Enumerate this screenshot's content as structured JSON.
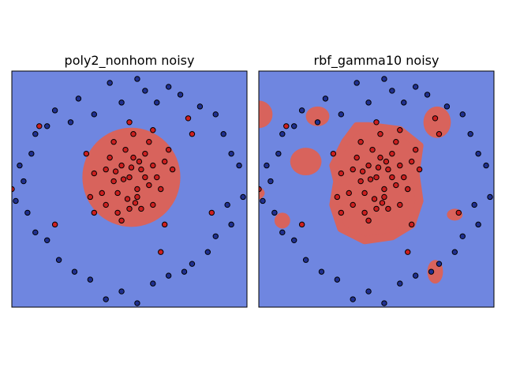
{
  "chart_data": [
    {
      "type": "scatter",
      "title": "poly2_nonhom noisy",
      "xlim": [
        -3,
        3
      ],
      "ylim": [
        -3,
        3
      ],
      "axis_ticks": "hidden",
      "background_region": {
        "label": "class 0",
        "color": "#6f86e0"
      },
      "decision_regions": [
        {
          "label": "class 1",
          "shape": "ellipse",
          "cx": 0.05,
          "cy": 0.3,
          "rx": 1.25,
          "ry": 1.26,
          "color": "#d8635c"
        }
      ],
      "series": [
        {
          "class": 1,
          "color": "#cc1f1f",
          "points": [
            [
              0,
              0.3
            ],
            [
              0.3,
              0.5
            ],
            [
              -0.2,
              0.6
            ],
            [
              0.5,
              0.1
            ],
            [
              -0.4,
              0.2
            ],
            [
              0.1,
              0.8
            ],
            [
              0.6,
              0.6
            ],
            [
              -0.6,
              0.5
            ],
            [
              0.2,
              -0.2
            ],
            [
              -0.3,
              -0.1
            ],
            [
              0.7,
              0.3
            ],
            [
              -0.1,
              1.0
            ],
            [
              0.4,
              0.9
            ],
            [
              -0.5,
              0.8
            ],
            [
              0.8,
              0.0
            ],
            [
              -0.7,
              -0.1
            ],
            [
              0.0,
              -0.5
            ],
            [
              0.3,
              -0.5
            ],
            [
              -0.3,
              -0.6
            ],
            [
              0.9,
              0.7
            ],
            [
              -0.9,
              0.4
            ],
            [
              0.5,
              1.2
            ],
            [
              -0.4,
              1.2
            ],
            [
              0.1,
              1.4
            ],
            [
              1.0,
              1.0
            ],
            [
              -1.0,
              -0.2
            ],
            [
              0.6,
              -0.4
            ],
            [
              -0.6,
              -0.4
            ],
            [
              0.2,
              0.0
            ],
            [
              0.4,
              0.3
            ],
            [
              -0.15,
              0.25
            ],
            [
              0.05,
              0.55
            ],
            [
              0.25,
              0.7
            ],
            [
              -0.35,
              0.45
            ],
            [
              0.15,
              -0.35
            ],
            [
              -0.05,
              -0.25
            ],
            [
              1.1,
              0.5
            ],
            [
              -1.1,
              0.9
            ],
            [
              0.6,
              1.5
            ],
            [
              -0.2,
              -0.8
            ],
            [
              -3.0,
              0.0
            ],
            [
              -1.9,
              -0.9
            ],
            [
              2.1,
              -0.6
            ],
            [
              0.8,
              -1.6
            ],
            [
              1.5,
              1.8
            ],
            [
              -2.3,
              1.6
            ],
            [
              1.6,
              1.4
            ],
            [
              -0.9,
              -0.6
            ],
            [
              0.0,
              1.7
            ],
            [
              0.9,
              -0.9
            ]
          ]
        },
        {
          "class": 0,
          "color": "#1f2f8f",
          "points": [
            [
              -1.3,
              2.3
            ],
            [
              -0.5,
              2.7
            ],
            [
              0.2,
              2.8
            ],
            [
              1.0,
              2.6
            ],
            [
              1.8,
              2.1
            ],
            [
              2.4,
              1.4
            ],
            [
              2.8,
              0.6
            ],
            [
              2.9,
              -0.2
            ],
            [
              2.6,
              -0.9
            ],
            [
              2.0,
              -1.6
            ],
            [
              1.4,
              -2.1
            ],
            [
              0.6,
              -2.4
            ],
            [
              -0.2,
              -2.6
            ],
            [
              -1.0,
              -2.3
            ],
            [
              -1.8,
              -1.8
            ],
            [
              -2.4,
              -1.1
            ],
            [
              -2.9,
              -0.3
            ],
            [
              -2.8,
              0.6
            ],
            [
              -2.4,
              1.4
            ],
            [
              -1.9,
              2.0
            ],
            [
              -0.9,
              1.9
            ],
            [
              -1.5,
              1.7
            ],
            [
              0.7,
              2.2
            ],
            [
              1.3,
              2.4
            ],
            [
              2.2,
              1.9
            ],
            [
              2.6,
              0.9
            ],
            [
              2.5,
              -0.4
            ],
            [
              2.2,
              -1.2
            ],
            [
              1.6,
              -1.9
            ],
            [
              1.0,
              -2.2
            ],
            [
              0.2,
              -2.9
            ],
            [
              -0.6,
              -2.8
            ],
            [
              -1.4,
              -2.1
            ],
            [
              -2.1,
              -1.3
            ],
            [
              -2.6,
              -0.6
            ],
            [
              -2.7,
              0.2
            ],
            [
              -2.5,
              0.9
            ],
            [
              -2.1,
              1.6
            ],
            [
              -0.2,
              2.2
            ],
            [
              0.4,
              2.5
            ]
          ]
        }
      ]
    },
    {
      "type": "scatter",
      "title": "rbf_gamma10 noisy",
      "xlim": [
        -3,
        3
      ],
      "ylim": [
        -3,
        3
      ],
      "axis_ticks": "hidden",
      "background_region": {
        "label": "class 0",
        "color": "#6f86e0"
      },
      "decision_regions": [
        {
          "label": "class 1",
          "shape": "blob",
          "color": "#d8635c",
          "polygon": [
            [
              -0.2,
              1.6
            ],
            [
              0.6,
              1.5
            ],
            [
              1.1,
              1.1
            ],
            [
              1.0,
              0.4
            ],
            [
              1.1,
              -0.3
            ],
            [
              0.9,
              -0.9
            ],
            [
              0.4,
              -1.2
            ],
            [
              -0.3,
              -1.3
            ],
            [
              -0.9,
              -1.0
            ],
            [
              -1.1,
              -0.4
            ],
            [
              -1.0,
              0.2
            ],
            [
              -1.1,
              0.6
            ],
            [
              -0.8,
              1.2
            ],
            [
              -0.5,
              1.6
            ]
          ]
        },
        {
          "label": "class 1",
          "shape": "ellipse",
          "cx": -3.0,
          "cy": 1.9,
          "rx": 0.35,
          "ry": 0.35,
          "color": "#d8635c"
        },
        {
          "label": "class 1",
          "shape": "ellipse",
          "cx": -1.8,
          "cy": 0.7,
          "rx": 0.4,
          "ry": 0.35,
          "color": "#d8635c"
        },
        {
          "label": "class 1",
          "shape": "ellipse",
          "cx": -3.2,
          "cy": -0.1,
          "rx": 0.35,
          "ry": 0.2,
          "color": "#d8635c"
        },
        {
          "label": "class 1",
          "shape": "ellipse",
          "cx": -2.4,
          "cy": -0.8,
          "rx": 0.2,
          "ry": 0.2,
          "color": "#d8635c"
        },
        {
          "label": "class 1",
          "shape": "ellipse",
          "cx": -1.5,
          "cy": 1.85,
          "rx": 0.3,
          "ry": 0.25,
          "color": "#d8635c"
        },
        {
          "label": "class 1",
          "shape": "ellipse",
          "cx": 1.55,
          "cy": 1.7,
          "rx": 0.35,
          "ry": 0.4,
          "color": "#d8635c"
        },
        {
          "label": "class 1",
          "shape": "ellipse",
          "cx": 2.0,
          "cy": -0.65,
          "rx": 0.2,
          "ry": 0.15,
          "color": "#d8635c"
        },
        {
          "label": "class 1",
          "shape": "ellipse",
          "cx": 1.5,
          "cy": -2.1,
          "rx": 0.2,
          "ry": 0.3,
          "color": "#d8635c"
        }
      ],
      "series": [
        {
          "class": 1,
          "color": "#cc1f1f",
          "points": [
            [
              0,
              0.3
            ],
            [
              0.3,
              0.5
            ],
            [
              -0.2,
              0.6
            ],
            [
              0.5,
              0.1
            ],
            [
              -0.4,
              0.2
            ],
            [
              0.1,
              0.8
            ],
            [
              0.6,
              0.6
            ],
            [
              -0.6,
              0.5
            ],
            [
              0.2,
              -0.2
            ],
            [
              -0.3,
              -0.1
            ],
            [
              0.7,
              0.3
            ],
            [
              -0.1,
              1.0
            ],
            [
              0.4,
              0.9
            ],
            [
              -0.5,
              0.8
            ],
            [
              0.8,
              0.0
            ],
            [
              -0.7,
              -0.1
            ],
            [
              0.0,
              -0.5
            ],
            [
              0.3,
              -0.5
            ],
            [
              -0.3,
              -0.6
            ],
            [
              0.9,
              0.7
            ],
            [
              -0.9,
              0.4
            ],
            [
              0.5,
              1.2
            ],
            [
              -0.4,
              1.2
            ],
            [
              0.1,
              1.4
            ],
            [
              1.0,
              1.0
            ],
            [
              -1.0,
              -0.2
            ],
            [
              0.6,
              -0.4
            ],
            [
              -0.6,
              -0.4
            ],
            [
              0.2,
              0.0
            ],
            [
              0.4,
              0.3
            ],
            [
              -0.15,
              0.25
            ],
            [
              0.05,
              0.55
            ],
            [
              0.25,
              0.7
            ],
            [
              -0.35,
              0.45
            ],
            [
              0.15,
              -0.35
            ],
            [
              -0.05,
              -0.25
            ],
            [
              1.1,
              0.5
            ],
            [
              -1.1,
              0.9
            ],
            [
              0.6,
              1.5
            ],
            [
              -0.2,
              -0.8
            ],
            [
              -3.0,
              0.0
            ],
            [
              -1.9,
              -0.9
            ],
            [
              2.1,
              -0.6
            ],
            [
              0.8,
              -1.6
            ],
            [
              1.5,
              1.8
            ],
            [
              -2.3,
              1.6
            ],
            [
              1.6,
              1.4
            ],
            [
              -0.9,
              -0.6
            ],
            [
              0.0,
              1.7
            ],
            [
              0.9,
              -0.9
            ]
          ]
        },
        {
          "class": 0,
          "color": "#1f2f8f",
          "points": [
            [
              -1.3,
              2.3
            ],
            [
              -0.5,
              2.7
            ],
            [
              0.2,
              2.8
            ],
            [
              1.0,
              2.6
            ],
            [
              1.8,
              2.1
            ],
            [
              2.4,
              1.4
            ],
            [
              2.8,
              0.6
            ],
            [
              2.9,
              -0.2
            ],
            [
              2.6,
              -0.9
            ],
            [
              2.0,
              -1.6
            ],
            [
              1.4,
              -2.1
            ],
            [
              0.6,
              -2.4
            ],
            [
              -0.2,
              -2.6
            ],
            [
              -1.0,
              -2.3
            ],
            [
              -1.8,
              -1.8
            ],
            [
              -2.4,
              -1.1
            ],
            [
              -2.9,
              -0.3
            ],
            [
              -2.8,
              0.6
            ],
            [
              -2.4,
              1.4
            ],
            [
              -1.9,
              2.0
            ],
            [
              -0.9,
              1.9
            ],
            [
              -1.5,
              1.7
            ],
            [
              0.7,
              2.2
            ],
            [
              1.3,
              2.4
            ],
            [
              2.2,
              1.9
            ],
            [
              2.6,
              0.9
            ],
            [
              2.5,
              -0.4
            ],
            [
              2.2,
              -1.2
            ],
            [
              1.6,
              -1.9
            ],
            [
              1.0,
              -2.2
            ],
            [
              0.2,
              -2.9
            ],
            [
              -0.6,
              -2.8
            ],
            [
              -1.4,
              -2.1
            ],
            [
              -2.1,
              -1.3
            ],
            [
              -2.6,
              -0.6
            ],
            [
              -2.7,
              0.2
            ],
            [
              -2.5,
              0.9
            ],
            [
              -2.1,
              1.6
            ],
            [
              -0.2,
              2.2
            ],
            [
              0.4,
              2.5
            ]
          ]
        }
      ]
    }
  ]
}
